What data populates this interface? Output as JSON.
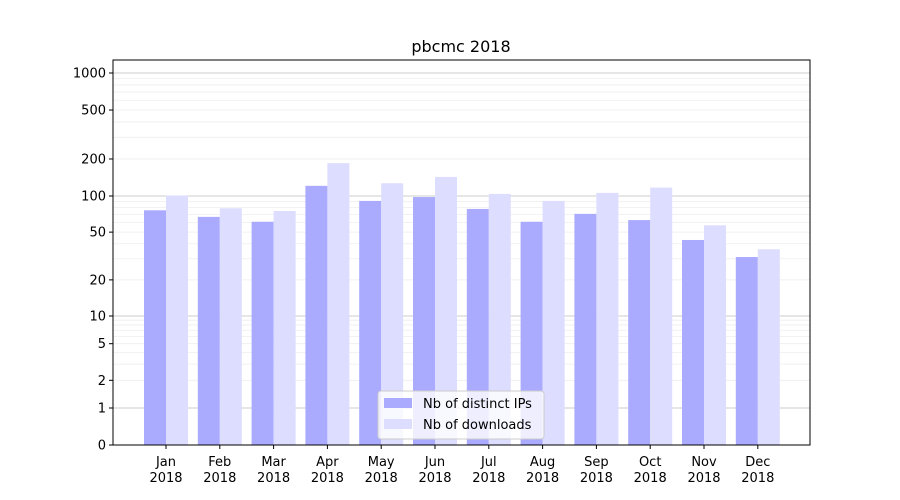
{
  "chart_data": {
    "type": "bar",
    "title": "pbcmc 2018",
    "xlabel": "",
    "ylabel": "",
    "y_scale": "symlog",
    "ylim": [
      0,
      1200
    ],
    "yticks": [
      0,
      1,
      2,
      5,
      10,
      20,
      50,
      100,
      200,
      500,
      1000
    ],
    "grid": true,
    "legend_position": "lower-center",
    "categories": [
      [
        "Jan",
        "2018"
      ],
      [
        "Feb",
        "2018"
      ],
      [
        "Mar",
        "2018"
      ],
      [
        "Apr",
        "2018"
      ],
      [
        "May",
        "2018"
      ],
      [
        "Jun",
        "2018"
      ],
      [
        "Jul",
        "2018"
      ],
      [
        "Aug",
        "2018"
      ],
      [
        "Sep",
        "2018"
      ],
      [
        "Oct",
        "2018"
      ],
      [
        "Nov",
        "2018"
      ],
      [
        "Dec",
        "2018"
      ]
    ],
    "series": [
      {
        "name": "Nb of distinct IPs",
        "color": "#aaaaff",
        "values": [
          76,
          67,
          61,
          121,
          91,
          98,
          78,
          61,
          71,
          63,
          43,
          31
        ]
      },
      {
        "name": "Nb of downloads",
        "color": "#ddddff",
        "values": [
          101,
          79,
          75,
          185,
          127,
          143,
          104,
          91,
          106,
          117,
          57,
          36
        ]
      }
    ]
  }
}
